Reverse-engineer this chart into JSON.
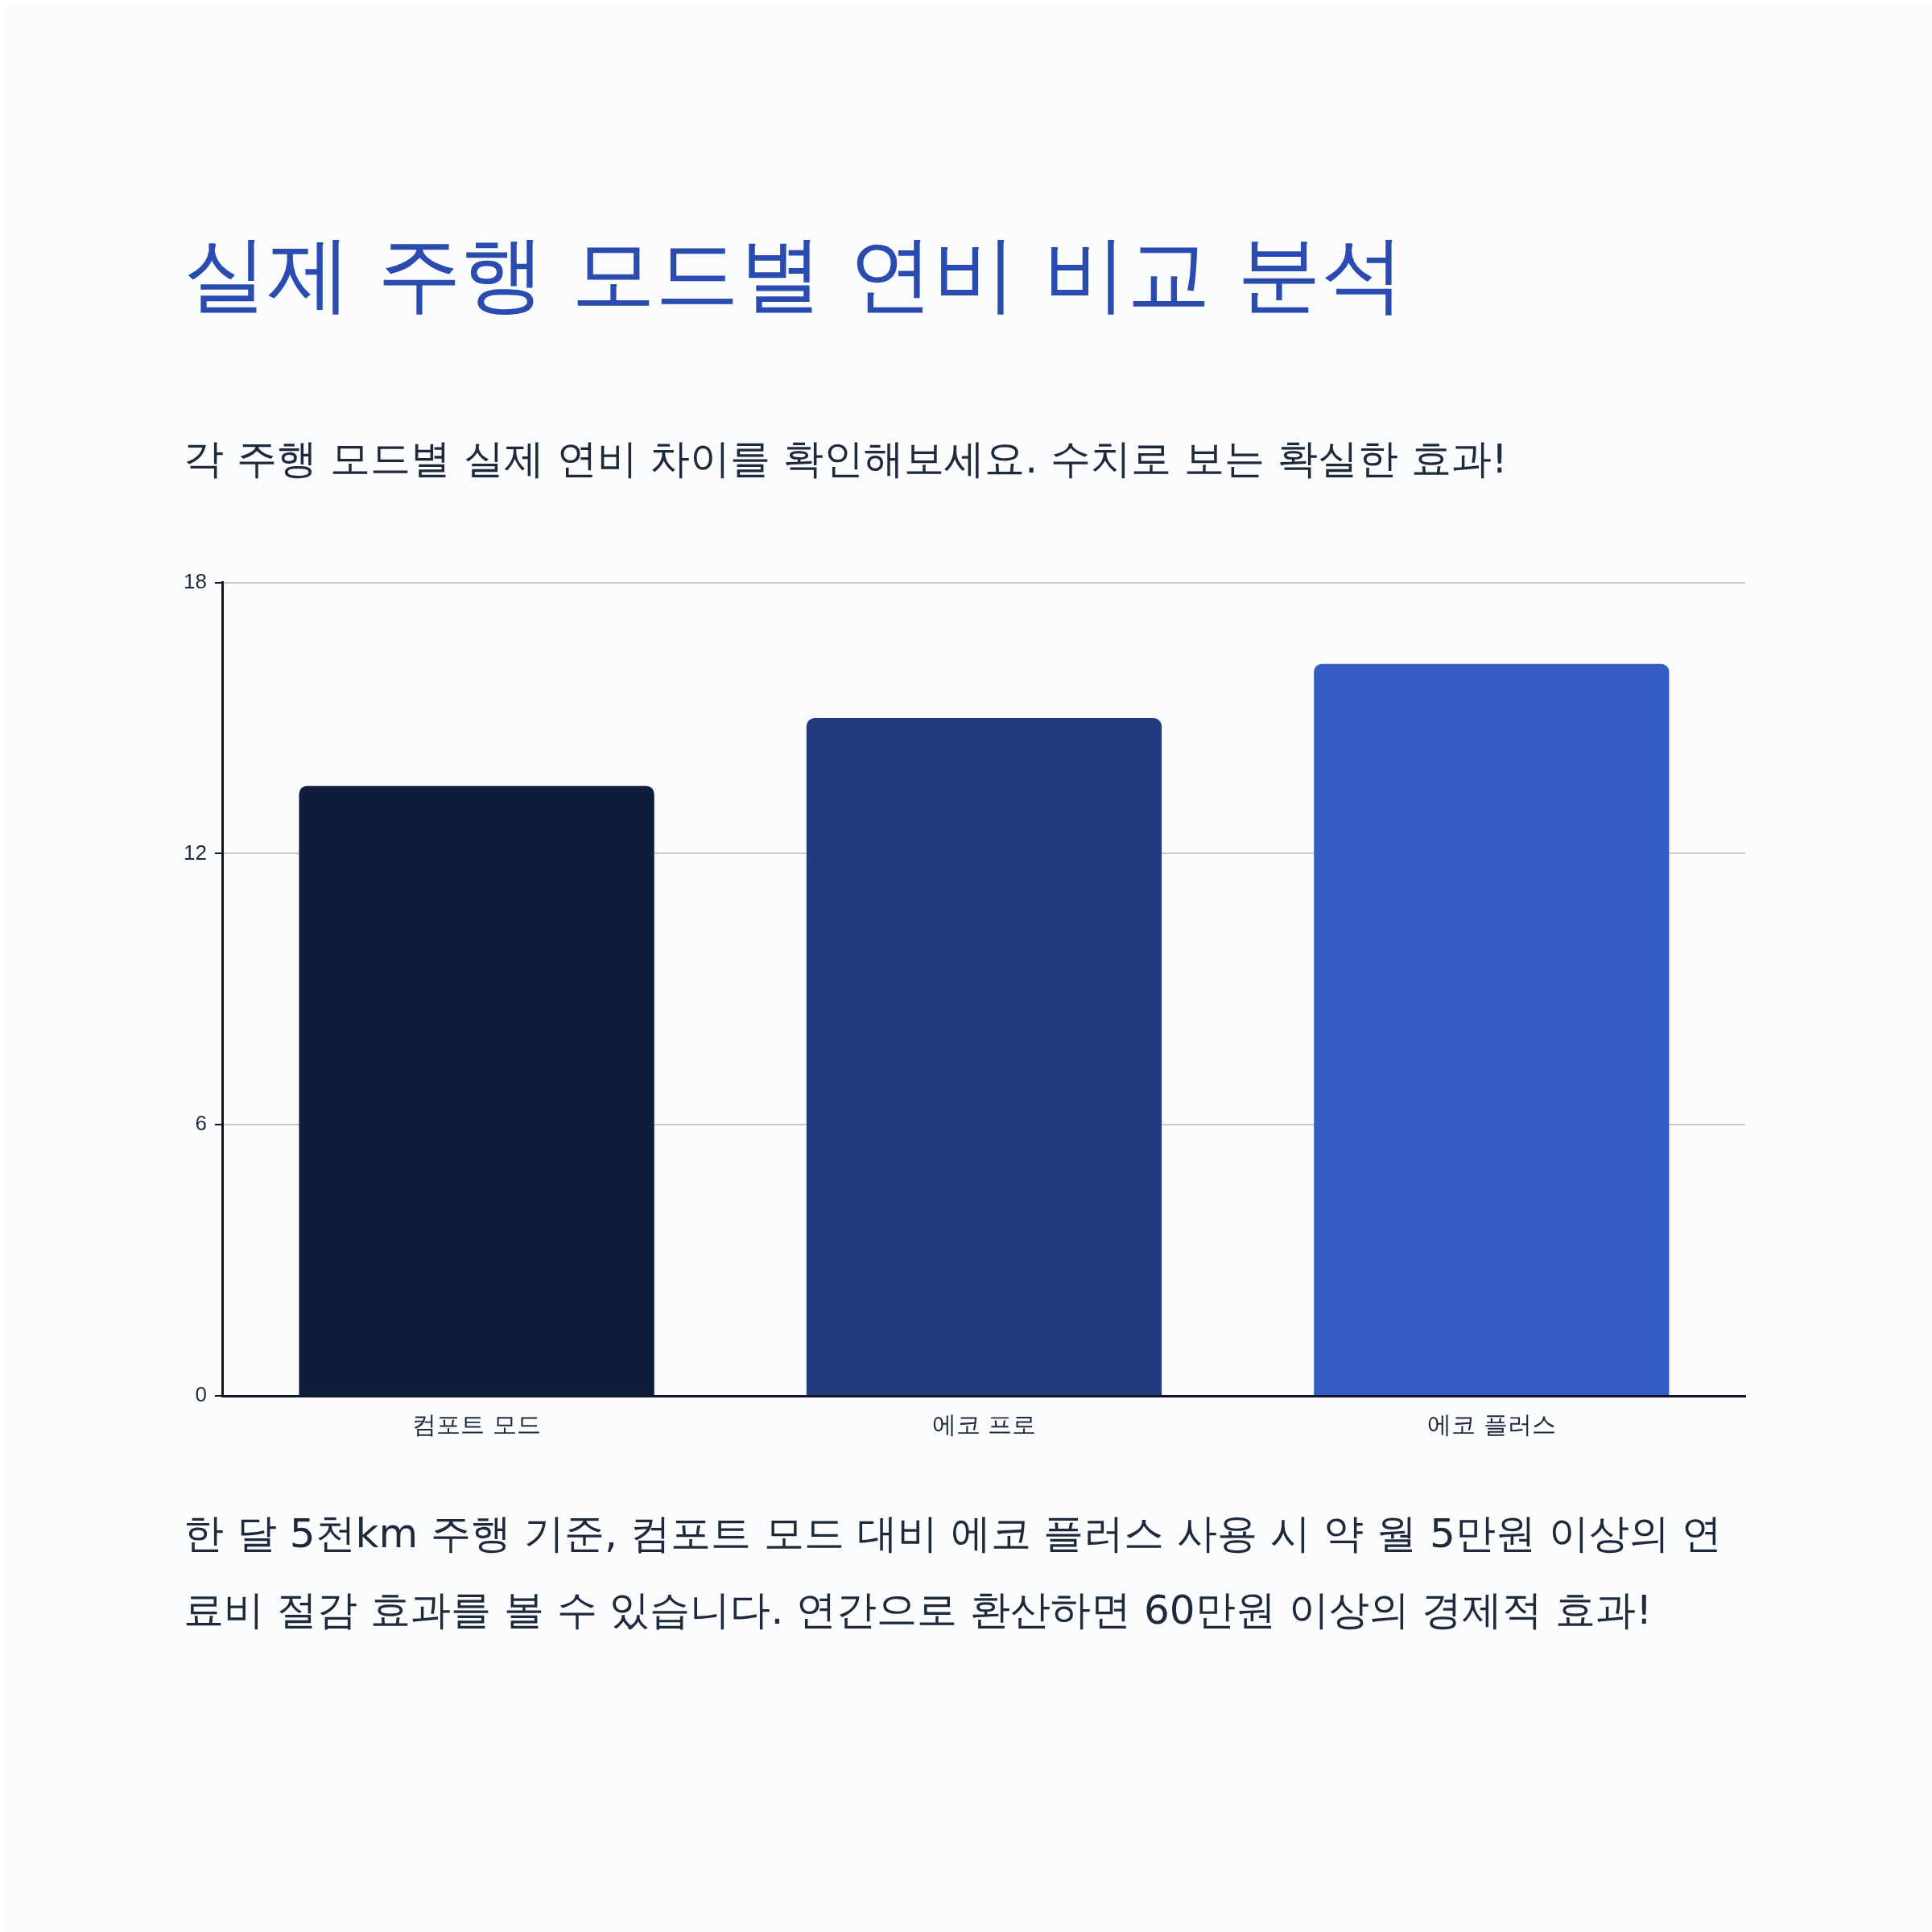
{
  "chart_data": {
    "type": "bar",
    "title": "실제 주행 모드별 연비 비교 분석",
    "subtitle": "각 주행 모드별 실제 연비 차이를 확인해보세요. 수치로 보는 확실한 효과!",
    "categories": [
      "컴포트 모드",
      "에코 프로",
      "에코 플러스"
    ],
    "values": [
      13.5,
      15,
      16.2
    ],
    "colors": [
      "#0f1d3c",
      "#233b7c",
      "#355cc4"
    ],
    "ylim": [
      0,
      18
    ],
    "yticks": [
      0,
      6,
      12,
      18
    ],
    "grid": "y",
    "legend": false,
    "annotations": [
      "한 달 5천km 주행 기준, 컴포트 모드 대비 에코 플러스 사용 시 약 월 5만원 이상의 연료비 절감 효과를 볼 수 있습니다. 연간으로 환산하면 60만원 이상의 경제적 효과!"
    ]
  }
}
